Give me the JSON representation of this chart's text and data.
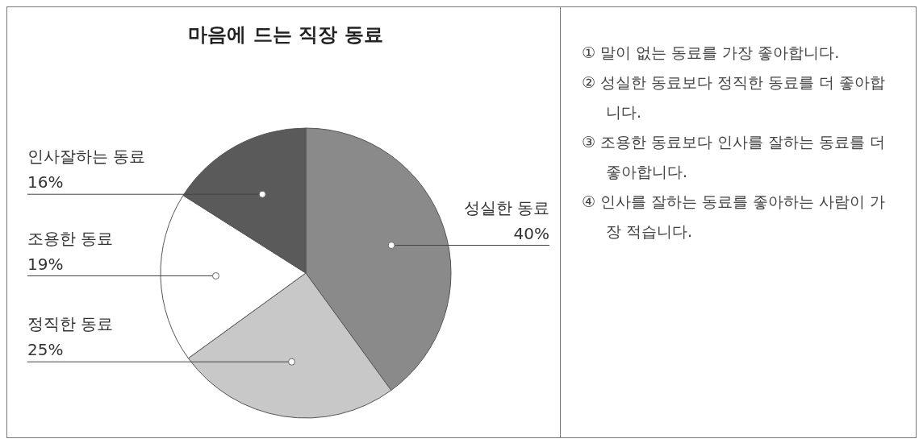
{
  "chart_data": [
    {
      "type": "pie",
      "title": "마음에 드는 직장 동료",
      "categories": [
        "성실한 동료",
        "정직한 동료",
        "조용한 동료",
        "인사잘하는 동료"
      ],
      "values": [
        40,
        25,
        19,
        16
      ],
      "colors": [
        "#8a8a8a",
        "#c8c8c8",
        "#ffffff",
        "#5a5a5a"
      ],
      "value_labels": [
        "40%",
        "25%",
        "19%",
        "16%"
      ]
    },
    {
      "type": "other",
      "annotations": [
        "① 말이 없는 동료를 가장 좋아합니다.",
        "② 성실한 동료보다 정직한 동료를 더 좋아합니다.",
        "③ 조용한 동료보다 인사를 잘하는 동료를 더 좋아합니다.",
        "④ 인사를 잘하는 동료를 좋아하는 사람이 가장 적습니다."
      ]
    }
  ]
}
